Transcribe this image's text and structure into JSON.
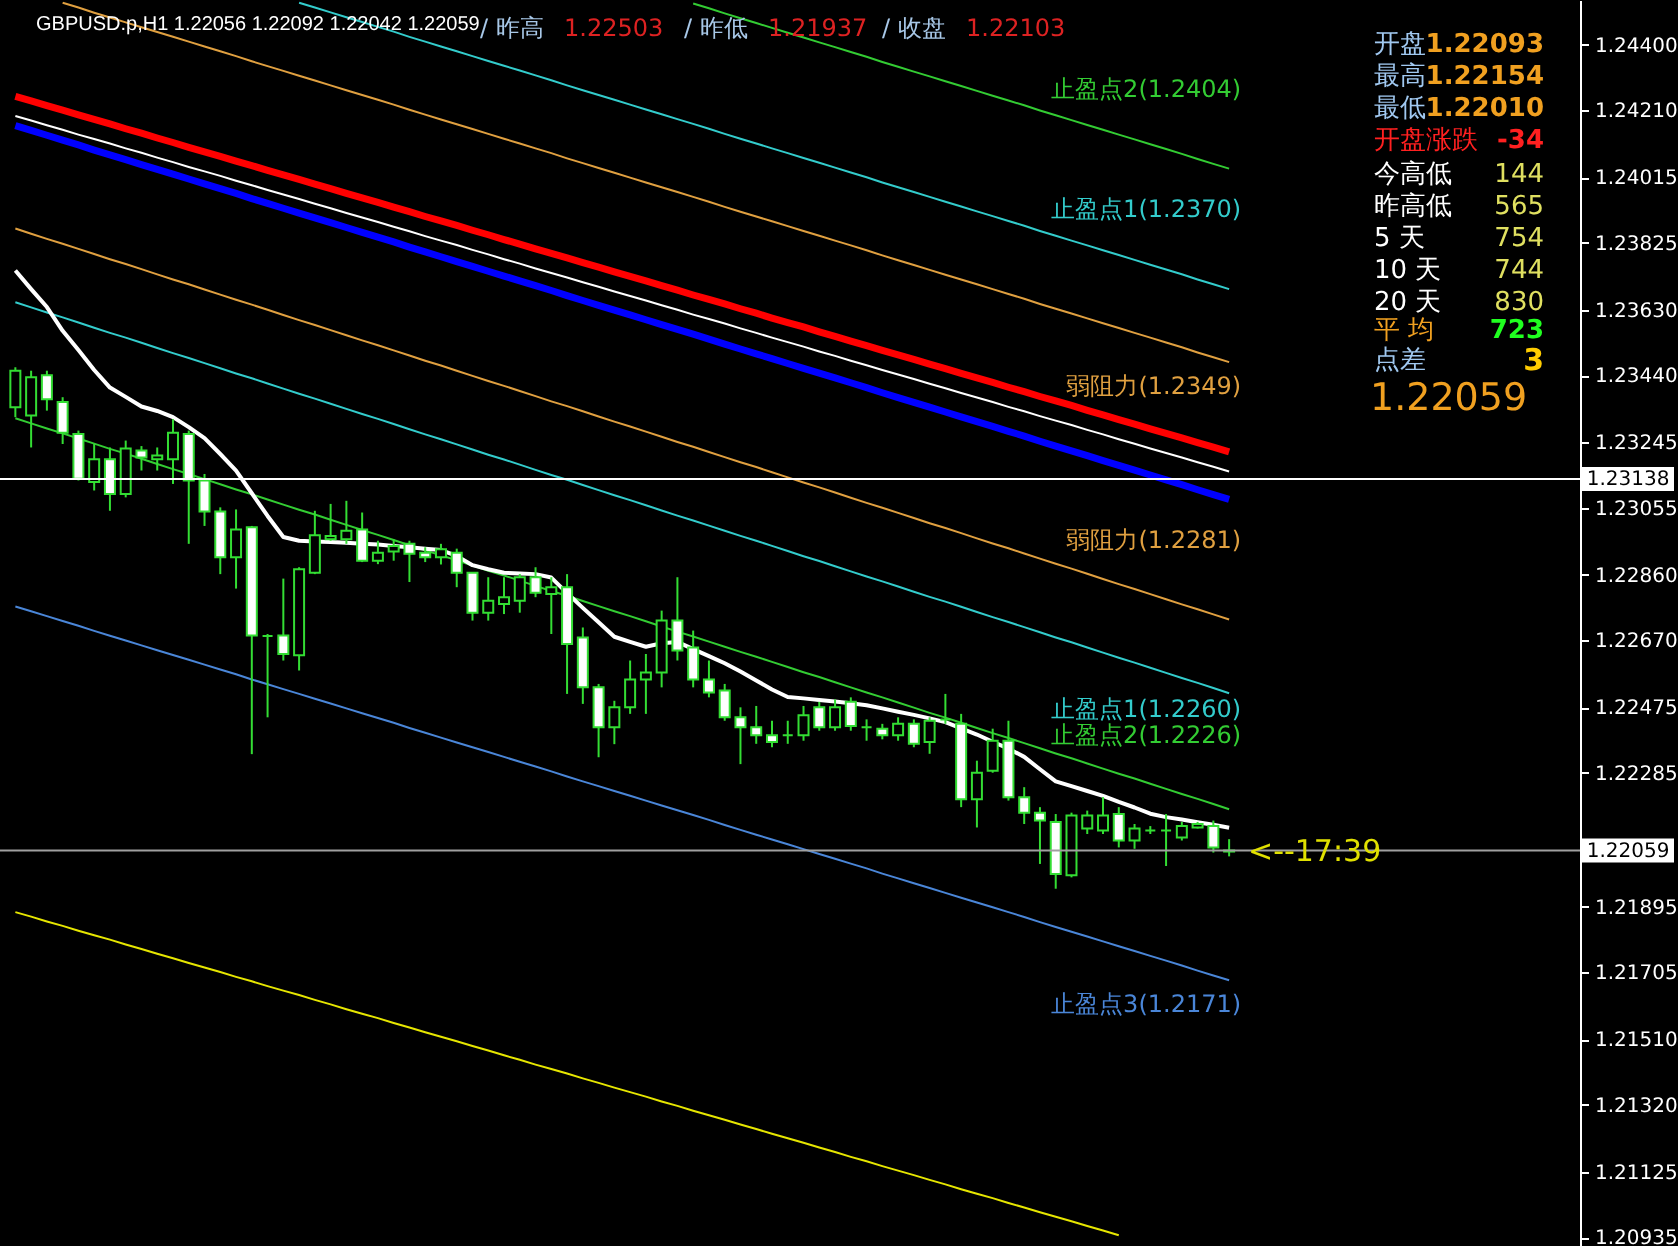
{
  "chart_data": {
    "type": "candlestick",
    "title": "GBPUSD.p,H1  1.22056 1.22092 1.22042 1.22059",
    "categories": [
      null,
      null,
      null,
      null,
      null,
      null,
      null,
      null,
      null,
      null,
      null,
      null,
      null,
      null,
      null,
      null,
      null,
      null,
      null,
      null,
      null,
      null,
      null,
      null,
      null,
      null,
      null,
      null,
      null,
      null,
      null,
      null,
      null,
      null,
      null,
      null,
      null,
      null,
      null,
      null,
      null,
      null,
      null,
      null,
      null,
      null,
      null,
      null,
      null,
      null,
      null,
      null,
      null,
      null,
      null,
      null,
      null,
      null,
      null,
      null,
      null,
      null,
      null,
      null,
      null,
      null,
      null,
      null,
      null,
      null,
      null,
      null,
      null,
      null,
      null,
      null,
      null,
      null
    ],
    "ohlc": [
      [
        1.23347,
        1.23463,
        1.23318,
        1.23453
      ],
      [
        1.23323,
        1.23453,
        1.2323,
        1.23434
      ],
      [
        1.2344,
        1.23453,
        1.23337,
        1.2337
      ],
      [
        1.23362,
        1.23376,
        1.2324,
        1.23273
      ],
      [
        1.23269,
        1.23279,
        1.23134,
        1.23139
      ],
      [
        1.2313,
        1.2324,
        1.23105,
        1.23196
      ],
      [
        1.23196,
        1.2323,
        1.23046,
        1.23095
      ],
      [
        1.23095,
        1.2325,
        1.23085,
        1.23227
      ],
      [
        1.23221,
        1.23234,
        1.23163,
        1.23201
      ],
      [
        1.23196,
        1.2323,
        1.23163,
        1.23207
      ],
      [
        1.23196,
        1.23312,
        1.23124,
        1.23273
      ],
      [
        1.23269,
        1.23279,
        1.2295,
        1.23134
      ],
      [
        1.23134,
        1.23153,
        1.23002,
        1.23044
      ],
      [
        1.23044,
        1.23056,
        1.22862,
        1.22911
      ],
      [
        1.22911,
        1.2305,
        1.2282,
        1.22992
      ],
      [
        1.22998,
        1.23002,
        1.22339,
        1.22684
      ],
      [
        1.22682,
        1.22688,
        1.22446,
        1.22682
      ],
      [
        1.22684,
        1.22849,
        1.22611,
        1.2263
      ],
      [
        1.22626,
        1.22882,
        1.22582,
        1.22876
      ],
      [
        1.22866,
        1.23046,
        1.22862,
        1.22975
      ],
      [
        1.22963,
        1.23066,
        1.22959,
        1.22973
      ],
      [
        1.22963,
        1.23075,
        1.2295,
        1.22988
      ],
      [
        1.22992,
        1.23041,
        1.22897,
        1.22901
      ],
      [
        1.22901,
        1.22959,
        1.22891,
        1.22924
      ],
      [
        1.22928,
        1.22963,
        1.22901,
        1.22944
      ],
      [
        1.2295,
        1.22959,
        1.22839,
        1.22921
      ],
      [
        1.22924,
        1.2294,
        1.22897,
        1.22911
      ],
      [
        1.22911,
        1.2295,
        1.2289,
        1.22934
      ],
      [
        1.22924,
        1.22936,
        1.22824,
        1.22866
      ],
      [
        1.22866,
        1.22866,
        1.22727,
        1.2275
      ],
      [
        1.2275,
        1.22853,
        1.22727,
        1.22785
      ],
      [
        1.22775,
        1.22853,
        1.22746,
        1.22795
      ],
      [
        1.22785,
        1.22862,
        1.2275,
        1.22853
      ],
      [
        1.22853,
        1.22882,
        1.22795,
        1.22808
      ],
      [
        1.22804,
        1.22853,
        1.22688,
        1.22824
      ],
      [
        1.22824,
        1.22862,
        1.22514,
        1.22659
      ],
      [
        1.22678,
        1.22707,
        1.22485,
        1.22533
      ],
      [
        1.22533,
        1.22543,
        1.2233,
        1.22417
      ],
      [
        1.22417,
        1.22494,
        1.22368,
        1.22475
      ],
      [
        1.22475,
        1.22611,
        1.22456,
        1.22556
      ],
      [
        1.22556,
        1.2263,
        1.22456,
        1.22576
      ],
      [
        1.22576,
        1.22756,
        1.22533,
        1.22727
      ],
      [
        1.22727,
        1.22853,
        1.22611,
        1.2264
      ],
      [
        1.22649,
        1.22698,
        1.22533,
        1.22556
      ],
      [
        1.22556,
        1.22611,
        1.22504,
        1.22518
      ],
      [
        1.22524,
        1.22543,
        1.22436,
        1.22446
      ],
      [
        1.22446,
        1.22475,
        1.2231,
        1.22417
      ],
      [
        1.22417,
        1.22479,
        1.22369,
        1.22394
      ],
      [
        1.22394,
        1.22436,
        1.22359,
        1.22374
      ],
      [
        1.22394,
        1.22436,
        1.22369,
        1.22394
      ],
      [
        1.22394,
        1.22479,
        1.22378,
        1.22452
      ],
      [
        1.22475,
        1.22491,
        1.22407,
        1.22417
      ],
      [
        1.22417,
        1.22498,
        1.22407,
        1.22475
      ],
      [
        1.22491,
        1.22504,
        1.22407,
        1.22421
      ],
      [
        1.22417,
        1.2244,
        1.22378,
        1.22417
      ],
      [
        1.22413,
        1.22427,
        1.22382,
        1.22394
      ],
      [
        1.22394,
        1.22446,
        1.22378,
        1.22427
      ],
      [
        1.22427,
        1.2244,
        1.22359,
        1.22369
      ],
      [
        1.22374,
        1.22446,
        1.2234,
        1.22436
      ],
      [
        1.2244,
        1.22514,
        1.22427,
        1.2244
      ],
      [
        1.22427,
        1.22456,
        1.22185,
        1.22208
      ],
      [
        1.22208,
        1.2232,
        1.22126,
        1.22285
      ],
      [
        1.22291,
        1.22413,
        1.22285,
        1.22378
      ],
      [
        1.22378,
        1.22436,
        1.22204,
        1.22214
      ],
      [
        1.22214,
        1.22243,
        1.22136,
        1.22169
      ],
      [
        1.22169,
        1.22185,
        1.2202,
        1.22146
      ],
      [
        1.22142,
        1.22165,
        1.21948,
        1.21991
      ],
      [
        1.21987,
        1.22169,
        1.21981,
        1.22161
      ],
      [
        1.22123,
        1.22175,
        1.22107,
        1.22161
      ],
      [
        1.22117,
        1.22214,
        1.22107,
        1.22161
      ],
      [
        1.22165,
        1.22185,
        1.22068,
        1.22088
      ],
      [
        1.22088,
        1.22136,
        1.22064,
        1.22123
      ],
      [
        1.22117,
        1.2213,
        1.22107,
        1.22117
      ],
      [
        1.22117,
        1.22165,
        1.22014,
        1.22117
      ],
      [
        1.22097,
        1.22142,
        1.22088,
        1.2213
      ],
      [
        1.22126,
        1.22142,
        1.22123,
        1.22136
      ],
      [
        1.2213,
        1.22146,
        1.22053,
        1.22068
      ],
      [
        1.22056,
        1.22092,
        1.22042,
        1.22059
      ]
    ],
    "color": "#33dd33",
    "series": [
      {
        "name": "止盈点2(1.2404)",
        "type": "line",
        "color": "#33cc33",
        "values": [
          null,
          null,
          null,
          null,
          null,
          null,
          null,
          null,
          null,
          null,
          null,
          null,
          null,
          null,
          null,
          null,
          null,
          null,
          null,
          null,
          null,
          null,
          null,
          null,
          null,
          null,
          null,
          null,
          null,
          null,
          null,
          null,
          null,
          null,
          null,
          null,
          null,
          null,
          null,
          null,
          null,
          null,
          null,
          1.2452,
          1.24506,
          1.24491,
          1.24477,
          1.24463,
          1.24449,
          1.24435,
          1.24421,
          1.24407,
          1.24393,
          1.24379,
          1.24365,
          1.2435,
          1.24336,
          1.24322,
          1.24308,
          1.24294,
          1.2428,
          1.24266,
          1.24252,
          1.24238,
          1.24224,
          1.24209,
          1.24195,
          1.24181,
          1.24167,
          1.24153,
          1.24139,
          1.24125,
          1.24111,
          1.24097,
          1.24083,
          1.24068,
          1.24054,
          1.2404
        ]
      },
      {
        "name": "止盈点1(1.2370)",
        "type": "line",
        "color": "#33cccc",
        "values": [
          null,
          null,
          null,
          null,
          null,
          null,
          null,
          null,
          null,
          null,
          null,
          null,
          null,
          null,
          null,
          null,
          null,
          null,
          1.24522,
          1.24508,
          1.24494,
          1.2448,
          1.24466,
          1.24452,
          1.24438,
          1.24423,
          1.24409,
          1.24395,
          1.24381,
          1.24367,
          1.24353,
          1.24339,
          1.24325,
          1.24311,
          1.24297,
          1.24282,
          1.24268,
          1.24254,
          1.2424,
          1.24226,
          1.24212,
          1.24198,
          1.24184,
          1.2417,
          1.24156,
          1.24141,
          1.24127,
          1.24113,
          1.24099,
          1.24085,
          1.24071,
          1.24057,
          1.24043,
          1.24029,
          1.24015,
          1.24,
          1.23986,
          1.23972,
          1.23958,
          1.23944,
          1.2393,
          1.23916,
          1.23902,
          1.23888,
          1.23874,
          1.23859,
          1.23845,
          1.23831,
          1.23817,
          1.23803,
          1.23789,
          1.23775,
          1.23761,
          1.23747,
          1.23733,
          1.23718,
          1.23704,
          1.2369
        ]
      },
      {
        "name": "弱阻力(1.2349)",
        "type": "line",
        "color": "#e0a040",
        "values": [
          null,
          null,
          null,
          1.24522,
          1.24508,
          1.24493,
          1.24479,
          1.24465,
          1.24451,
          1.24437,
          1.24423,
          1.24409,
          1.24395,
          1.24381,
          1.24367,
          1.24352,
          1.24338,
          1.24324,
          1.2431,
          1.24296,
          1.24282,
          1.24268,
          1.24254,
          1.2424,
          1.24226,
          1.24211,
          1.24197,
          1.24183,
          1.24169,
          1.24155,
          1.24141,
          1.24127,
          1.24113,
          1.24099,
          1.24085,
          1.2407,
          1.24056,
          1.24042,
          1.24028,
          1.24014,
          1.24,
          1.23986,
          1.23972,
          1.23958,
          1.23944,
          1.23929,
          1.23915,
          1.23901,
          1.23887,
          1.23873,
          1.23859,
          1.23845,
          1.23831,
          1.23817,
          1.23803,
          1.23788,
          1.23774,
          1.2376,
          1.23746,
          1.23732,
          1.23718,
          1.23704,
          1.2369,
          1.23676,
          1.23662,
          1.23647,
          1.23633,
          1.23619,
          1.23605,
          1.23591,
          1.23577,
          1.23563,
          1.23549,
          1.23535,
          1.23521,
          1.23506,
          1.23492,
          1.23478
        ]
      },
      {
        "type": "line",
        "color": "#ff0000",
        "values": [
          1.2425,
          1.24237,
          1.24223,
          1.2421,
          1.24196,
          1.24183,
          1.2417,
          1.24156,
          1.24143,
          1.24129,
          1.24116,
          1.24102,
          1.24089,
          1.24076,
          1.24062,
          1.24049,
          1.24035,
          1.24022,
          1.24009,
          1.23995,
          1.23982,
          1.23968,
          1.23955,
          1.23942,
          1.23928,
          1.23915,
          1.23901,
          1.23888,
          1.23875,
          1.23861,
          1.23848,
          1.23834,
          1.23821,
          1.23807,
          1.23794,
          1.23781,
          1.23767,
          1.23754,
          1.2374,
          1.23727,
          1.23714,
          1.237,
          1.23687,
          1.23673,
          1.2366,
          1.23647,
          1.23633,
          1.2362,
          1.23606,
          1.23593,
          1.2358,
          1.23566,
          1.23553,
          1.23539,
          1.23526,
          1.23512,
          1.23499,
          1.23486,
          1.23472,
          1.23459,
          1.23445,
          1.23432,
          1.23419,
          1.23405,
          1.23392,
          1.23378,
          1.23365,
          1.23352,
          1.23338,
          1.23325,
          1.23311,
          1.23298,
          1.23284,
          1.23271,
          1.23258,
          1.23244,
          1.23231,
          1.23217
        ]
      },
      {
        "type": "line",
        "color": "#ffffff",
        "values": [
          1.24193,
          1.2418,
          1.24166,
          1.24153,
          1.24139,
          1.24126,
          1.24113,
          1.24099,
          1.24086,
          1.24072,
          1.24059,
          1.24045,
          1.24032,
          1.24019,
          1.24005,
          1.23992,
          1.23978,
          1.23965,
          1.23952,
          1.23938,
          1.23925,
          1.23911,
          1.23898,
          1.23885,
          1.23871,
          1.23858,
          1.23844,
          1.23831,
          1.23818,
          1.23804,
          1.23791,
          1.23777,
          1.23764,
          1.2375,
          1.23737,
          1.23724,
          1.2371,
          1.23697,
          1.23683,
          1.2367,
          1.23657,
          1.23643,
          1.2363,
          1.23616,
          1.23603,
          1.2359,
          1.23576,
          1.23563,
          1.23549,
          1.23536,
          1.23523,
          1.23509,
          1.23496,
          1.23482,
          1.23469,
          1.23455,
          1.23442,
          1.23429,
          1.23415,
          1.23402,
          1.23388,
          1.23375,
          1.23362,
          1.23348,
          1.23335,
          1.23321,
          1.23308,
          1.23295,
          1.23281,
          1.23268,
          1.23254,
          1.23241,
          1.23227,
          1.23214,
          1.23201,
          1.23187,
          1.23174,
          1.2316
        ]
      },
      {
        "type": "line",
        "color": "#0000ff",
        "values": [
          1.24165,
          1.24151,
          1.24137,
          1.24123,
          1.24109,
          1.24094,
          1.2408,
          1.24066,
          1.24052,
          1.24038,
          1.24024,
          1.2401,
          1.23996,
          1.23982,
          1.23968,
          1.23953,
          1.23939,
          1.23925,
          1.23911,
          1.23897,
          1.23883,
          1.23869,
          1.23855,
          1.23841,
          1.23827,
          1.23812,
          1.23798,
          1.23784,
          1.2377,
          1.23756,
          1.23742,
          1.23728,
          1.23714,
          1.237,
          1.23686,
          1.23671,
          1.23657,
          1.23643,
          1.23629,
          1.23615,
          1.23601,
          1.23587,
          1.23573,
          1.23559,
          1.23545,
          1.2353,
          1.23516,
          1.23502,
          1.23488,
          1.23474,
          1.2346,
          1.23446,
          1.23432,
          1.23418,
          1.23404,
          1.23389,
          1.23375,
          1.23361,
          1.23347,
          1.23333,
          1.23319,
          1.23305,
          1.23291,
          1.23277,
          1.23263,
          1.23248,
          1.23234,
          1.2322,
          1.23206,
          1.23192,
          1.23178,
          1.23164,
          1.2315,
          1.23136,
          1.23122,
          1.23107,
          1.23093,
          1.23079
        ]
      },
      {
        "name": "弱阻力(1.2281)",
        "type": "line",
        "color": "#e0a040",
        "values": [
          1.23866,
          1.23851,
          1.23836,
          1.23822,
          1.23807,
          1.23792,
          1.23777,
          1.23763,
          1.23748,
          1.23733,
          1.23718,
          1.23704,
          1.23689,
          1.23674,
          1.23659,
          1.23645,
          1.2363,
          1.23615,
          1.236,
          1.23586,
          1.23571,
          1.23556,
          1.23541,
          1.23527,
          1.23512,
          1.23497,
          1.23482,
          1.23468,
          1.23453,
          1.23438,
          1.23423,
          1.23409,
          1.23394,
          1.23379,
          1.23364,
          1.2335,
          1.23335,
          1.2332,
          1.23305,
          1.23291,
          1.23276,
          1.23261,
          1.23246,
          1.23232,
          1.23217,
          1.23202,
          1.23187,
          1.23173,
          1.23158,
          1.23143,
          1.23128,
          1.23114,
          1.23099,
          1.23084,
          1.23069,
          1.23055,
          1.2304,
          1.23025,
          1.2301,
          1.22996,
          1.22981,
          1.22966,
          1.22951,
          1.22937,
          1.22922,
          1.22907,
          1.22892,
          1.22878,
          1.22863,
          1.22848,
          1.22833,
          1.22819,
          1.22804,
          1.22789,
          1.22774,
          1.2276,
          1.22745,
          1.2273
        ]
      },
      {
        "name": "止盈点1(1.2260)",
        "type": "line",
        "color": "#33cccc",
        "values": [
          1.23652,
          1.23637,
          1.23622,
          1.23608,
          1.23593,
          1.23578,
          1.23563,
          1.23549,
          1.23534,
          1.23519,
          1.23504,
          1.2349,
          1.23475,
          1.2346,
          1.23445,
          1.23431,
          1.23416,
          1.23401,
          1.23386,
          1.23372,
          1.23357,
          1.23342,
          1.23327,
          1.23313,
          1.23298,
          1.23283,
          1.23268,
          1.23254,
          1.23239,
          1.23224,
          1.23209,
          1.23195,
          1.2318,
          1.23165,
          1.2315,
          1.23136,
          1.23121,
          1.23106,
          1.23091,
          1.23077,
          1.23062,
          1.23047,
          1.23032,
          1.23018,
          1.23003,
          1.22988,
          1.22973,
          1.22959,
          1.22944,
          1.22929,
          1.22914,
          1.229,
          1.22885,
          1.2287,
          1.22855,
          1.22841,
          1.22826,
          1.22811,
          1.22796,
          1.22782,
          1.22767,
          1.22752,
          1.22737,
          1.22723,
          1.22708,
          1.22693,
          1.22678,
          1.22664,
          1.22649,
          1.22634,
          1.22619,
          1.22605,
          1.2259,
          1.22575,
          1.2256,
          1.22546,
          1.22531,
          1.22516
        ]
      },
      {
        "name": "止盈点2(1.2226)",
        "type": "line",
        "color": "#33cc33",
        "values": [
          1.23315,
          1.233,
          1.23285,
          1.23271,
          1.23256,
          1.23241,
          1.23226,
          1.23212,
          1.23197,
          1.23182,
          1.23167,
          1.23153,
          1.23138,
          1.23123,
          1.23108,
          1.23094,
          1.23079,
          1.23064,
          1.23049,
          1.23035,
          1.2302,
          1.23005,
          1.2299,
          1.22976,
          1.22961,
          1.22946,
          1.22931,
          1.22917,
          1.22902,
          1.22887,
          1.22872,
          1.22858,
          1.22843,
          1.22828,
          1.22813,
          1.22799,
          1.22784,
          1.22769,
          1.22754,
          1.2274,
          1.22725,
          1.2271,
          1.22695,
          1.22681,
          1.22666,
          1.22651,
          1.22636,
          1.22622,
          1.22607,
          1.22592,
          1.22577,
          1.22563,
          1.22548,
          1.22533,
          1.22518,
          1.22504,
          1.22489,
          1.22474,
          1.22459,
          1.22445,
          1.2243,
          1.22415,
          1.224,
          1.22386,
          1.22371,
          1.22356,
          1.22341,
          1.22327,
          1.22312,
          1.22297,
          1.22282,
          1.22268,
          1.22253,
          1.22238,
          1.22223,
          1.22209,
          1.22194,
          1.22179
        ]
      },
      {
        "name": "止盈点3(1.2171)",
        "type": "line",
        "color": "#4a86d8",
        "values": [
          1.22768,
          1.22754,
          1.2274,
          1.22726,
          1.22712,
          1.22697,
          1.22683,
          1.22669,
          1.22655,
          1.22641,
          1.22627,
          1.22613,
          1.22599,
          1.22585,
          1.22571,
          1.22556,
          1.22542,
          1.22528,
          1.22514,
          1.225,
          1.22486,
          1.22472,
          1.22458,
          1.22444,
          1.2243,
          1.22415,
          1.22401,
          1.22387,
          1.22373,
          1.22359,
          1.22345,
          1.22331,
          1.22317,
          1.22303,
          1.22289,
          1.22274,
          1.2226,
          1.22246,
          1.22232,
          1.22218,
          1.22204,
          1.2219,
          1.22176,
          1.22162,
          1.22148,
          1.22133,
          1.22119,
          1.22105,
          1.22091,
          1.22077,
          1.22063,
          1.22049,
          1.22035,
          1.22021,
          1.22007,
          1.21992,
          1.21978,
          1.21964,
          1.2195,
          1.21936,
          1.21922,
          1.21908,
          1.21894,
          1.2188,
          1.21866,
          1.21851,
          1.21837,
          1.21823,
          1.21809,
          1.21795,
          1.21781,
          1.21767,
          1.21753,
          1.21739,
          1.21725,
          1.2171,
          1.21696,
          1.21682
        ]
      },
      {
        "type": "line",
        "color": "#e6e600",
        "values": [
          1.2188,
          1.21867,
          1.21853,
          1.2184,
          1.21826,
          1.21813,
          1.218,
          1.21786,
          1.21773,
          1.21759,
          1.21746,
          1.21732,
          1.21719,
          1.21706,
          1.21692,
          1.21679,
          1.21665,
          1.21652,
          1.21639,
          1.21625,
          1.21612,
          1.21598,
          1.21585,
          1.21572,
          1.21558,
          1.21545,
          1.21531,
          1.21518,
          1.21505,
          1.21491,
          1.21478,
          1.21464,
          1.21451,
          1.21437,
          1.21424,
          1.21411,
          1.21397,
          1.21384,
          1.2137,
          1.21357,
          1.21344,
          1.2133,
          1.21317,
          1.21303,
          1.2129,
          1.21277,
          1.21263,
          1.2125,
          1.21236,
          1.21223,
          1.2121,
          1.21196,
          1.21183,
          1.21169,
          1.21156,
          1.21142,
          1.21129,
          1.21116,
          1.21102,
          1.21089,
          1.21075,
          1.21062,
          1.21049,
          1.21035,
          1.21022,
          1.21008,
          1.20995,
          1.20982,
          1.20968,
          1.20955,
          1.20941,
          null,
          null,
          null,
          null,
          null,
          null,
          null
        ]
      },
      {
        "type": "line",
        "color": "#ffffff",
        "values": [
          1.23744,
          1.2369,
          1.23638,
          1.23569,
          1.23513,
          1.23455,
          1.23404,
          1.23377,
          1.23349,
          1.23336,
          1.23318,
          1.23289,
          1.23257,
          1.23211,
          1.23163,
          1.23097,
          1.23031,
          1.2297,
          1.22959,
          1.22957,
          1.22955,
          1.22953,
          1.2295,
          1.22948,
          1.22944,
          1.2294,
          1.22936,
          1.22932,
          1.22915,
          1.22888,
          1.22876,
          1.22866,
          1.22864,
          1.22862,
          1.22852,
          1.22807,
          1.22764,
          1.22722,
          1.2268,
          1.22665,
          1.22651,
          1.22661,
          1.22665,
          1.22644,
          1.22624,
          1.22603,
          1.22579,
          1.22553,
          1.22527,
          1.22505,
          1.22501,
          1.22496,
          1.22492,
          1.22487,
          1.22481,
          1.22472,
          1.22462,
          1.22453,
          1.22443,
          1.22432,
          1.22414,
          1.22396,
          1.22375,
          1.22355,
          1.22331,
          1.22295,
          1.2226,
          1.22246,
          1.22232,
          1.22218,
          1.222,
          1.22184,
          1.22166,
          1.22156,
          1.22149,
          1.22141,
          1.22134,
          1.22125
        ]
      }
    ],
    "ylim": [
      1.2091,
      1.2453
    ],
    "yticks": [
      {
        "value": 1.244,
        "label": "1.24400"
      },
      {
        "value": 1.2421,
        "label": "1.24210"
      },
      {
        "value": 1.24015,
        "label": "1.24015"
      },
      {
        "value": 1.23825,
        "label": "1.23825"
      },
      {
        "value": 1.2363,
        "label": "1.23630"
      },
      {
        "value": 1.2344,
        "label": "1.23440"
      },
      {
        "value": 1.23245,
        "label": "1.23245"
      },
      {
        "value": 1.23055,
        "label": "1.23055"
      },
      {
        "value": 1.2286,
        "label": "1.22860"
      },
      {
        "value": 1.2267,
        "label": "1.22670"
      },
      {
        "value": 1.22475,
        "label": "1.22475"
      },
      {
        "value": 1.22285,
        "label": "1.22285"
      },
      {
        "value": 1.21895,
        "label": "1.21895"
      },
      {
        "value": 1.21705,
        "label": "1.21705"
      },
      {
        "value": 1.2151,
        "label": "1.21510"
      },
      {
        "value": 1.2132,
        "label": "1.21320"
      },
      {
        "value": 1.21125,
        "label": "1.21125"
      },
      {
        "value": 1.20935,
        "label": "1.20935"
      }
    ],
    "tick_labels": "y",
    "ref_lines": [
      {
        "axis": "y",
        "value": 1.23138,
        "label": "1.23138",
        "color": "#ffffff"
      },
      {
        "axis": "y",
        "value": 1.22059,
        "label": "1.22059",
        "color": "#a0a0a0"
      }
    ],
    "annotations": [
      "/ 昨高",
      "1.22503",
      "/ 昨低",
      "1.21937",
      "/ 收盘",
      "1.22103",
      "开盘",
      "1.22093",
      "最高",
      "1.22154",
      "最低",
      "1.22010",
      "开盘涨跌",
      "-34",
      "今高低",
      "144",
      "昨高低",
      "565",
      "5   天",
      "754",
      "10  天",
      "744",
      "20  天",
      "830",
      "平   均",
      "723",
      "点差",
      "3",
      "1.22059",
      {
        "text": "<--17:39",
        "y": 1.22059
      }
    ]
  }
}
